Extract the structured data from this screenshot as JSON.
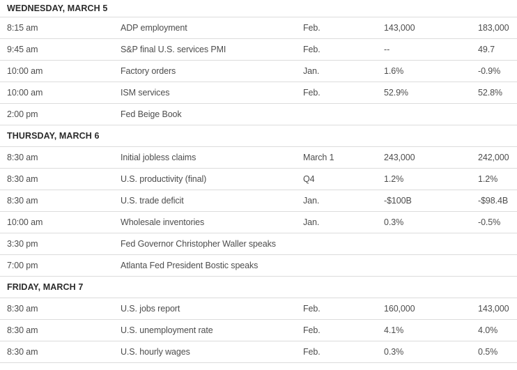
{
  "colors": {
    "background": "#ffffff",
    "divider": "#dcdcdc",
    "section_header_text": "#2b2b2b",
    "body_text": "#4d4d4d"
  },
  "calendar": {
    "sections": [
      {
        "title": "WEDNESDAY, MARCH 5",
        "rows": [
          {
            "time": "8:15 am",
            "report": "ADP employment",
            "period": "Feb.",
            "forecast": "143,000",
            "previous": "183,000"
          },
          {
            "time": "9:45 am",
            "report": "S&P final U.S. services PMI",
            "period": "Feb.",
            "forecast": "--",
            "previous": "49.7"
          },
          {
            "time": "10:00 am",
            "report": "Factory orders",
            "period": "Jan.",
            "forecast": "1.6%",
            "previous": "-0.9%"
          },
          {
            "time": "10:00 am",
            "report": "ISM services",
            "period": "Feb.",
            "forecast": "52.9%",
            "previous": "52.8%"
          },
          {
            "time": "2:00 pm",
            "report": "Fed Beige Book",
            "period": "",
            "forecast": "",
            "previous": ""
          }
        ]
      },
      {
        "title": "THURSDAY, MARCH 6",
        "rows": [
          {
            "time": "8:30 am",
            "report": "Initial jobless claims",
            "period": "March 1",
            "forecast": "243,000",
            "previous": "242,000"
          },
          {
            "time": "8:30 am",
            "report": "U.S. productivity (final)",
            "period": "Q4",
            "forecast": "1.2%",
            "previous": "1.2%"
          },
          {
            "time": "8:30 am",
            "report": "U.S. trade deficit",
            "period": "Jan.",
            "forecast": "-$100B",
            "previous": "-$98.4B"
          },
          {
            "time": "10:00 am",
            "report": "Wholesale inventories",
            "period": "Jan.",
            "forecast": "0.3%",
            "previous": "-0.5%"
          },
          {
            "time": "3:30 pm",
            "report": "Fed Governor Christopher Waller speaks",
            "period": "",
            "forecast": "",
            "previous": ""
          },
          {
            "time": "7:00 pm",
            "report": "Atlanta Fed President Bostic speaks",
            "period": "",
            "forecast": "",
            "previous": ""
          }
        ]
      },
      {
        "title": "FRIDAY, MARCH 7",
        "rows": [
          {
            "time": "8:30 am",
            "report": "U.S. jobs report",
            "period": "Feb.",
            "forecast": "160,000",
            "previous": "143,000"
          },
          {
            "time": "8:30 am",
            "report": "U.S. unemployment rate",
            "period": "Feb.",
            "forecast": "4.1%",
            "previous": "4.0%"
          },
          {
            "time": "8:30 am",
            "report": "U.S. hourly wages",
            "period": "Feb.",
            "forecast": "0.3%",
            "previous": "0.5%"
          }
        ]
      }
    ]
  }
}
